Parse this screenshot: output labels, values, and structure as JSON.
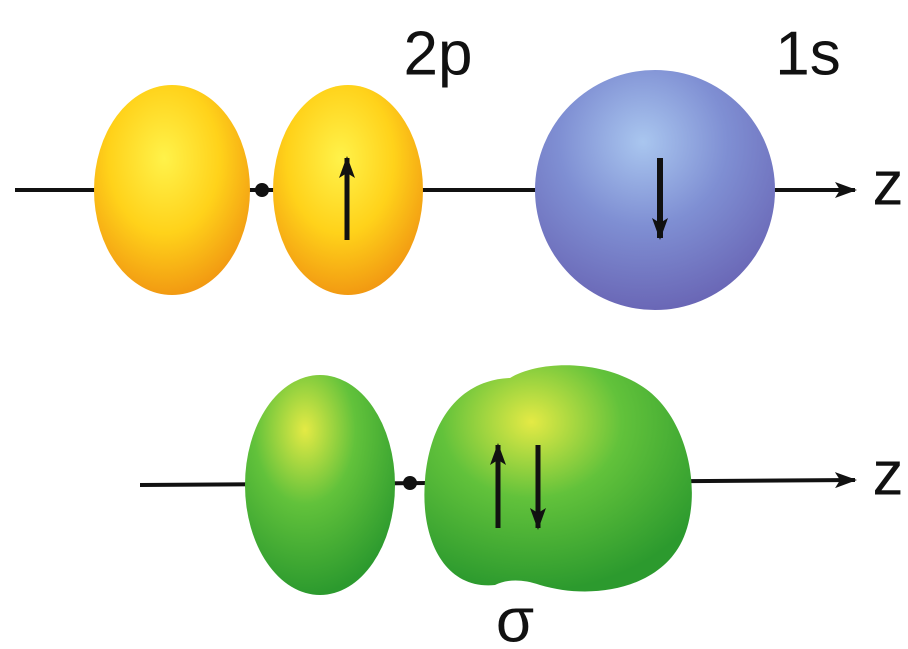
{
  "top": {
    "label_2p": "2p",
    "label_1s": "1s",
    "axis_label": "z"
  },
  "bottom": {
    "axis_label": "z",
    "bond_label": "σ"
  }
}
